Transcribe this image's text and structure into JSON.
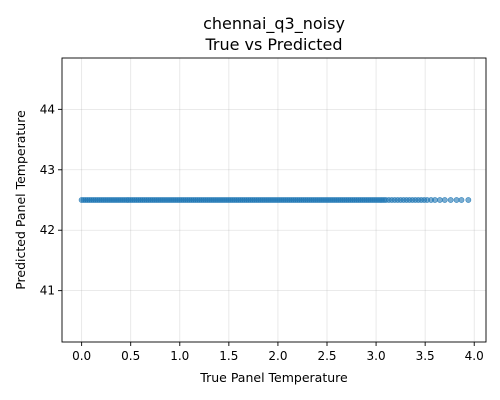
{
  "chart_data": {
    "type": "scatter",
    "title_line1": "chennai_q3_noisy",
    "title_line2": "True vs Predicted",
    "xlabel": "True Panel Temperature",
    "ylabel": "Predicted Panel Temperature",
    "xlim": [
      -0.2,
      4.12
    ],
    "ylim": [
      40.15,
      44.85
    ],
    "xticks": [
      0.0,
      0.5,
      1.0,
      1.5,
      2.0,
      2.5,
      3.0,
      3.5,
      4.0
    ],
    "xtick_labels": [
      "0.0",
      "0.5",
      "1.0",
      "1.5",
      "2.0",
      "2.5",
      "3.0",
      "3.5",
      "4.0"
    ],
    "yticks": [
      41,
      42,
      43,
      44
    ],
    "ytick_labels": [
      "41",
      "42",
      "43",
      "44"
    ],
    "grid": true,
    "point_color": "#1f77b4",
    "series": [
      {
        "predicted_value": 42.5,
        "x": [
          0.0,
          0.02,
          0.04,
          0.06,
          0.08,
          0.1,
          0.12,
          0.14,
          0.16,
          0.18,
          0.2,
          0.22,
          0.24,
          0.26,
          0.28,
          0.3,
          0.32,
          0.34,
          0.36,
          0.38,
          0.4,
          0.42,
          0.44,
          0.46,
          0.48,
          0.5,
          0.52,
          0.54,
          0.56,
          0.58,
          0.6,
          0.62,
          0.64,
          0.66,
          0.68,
          0.7,
          0.72,
          0.74,
          0.76,
          0.78,
          0.8,
          0.82,
          0.84,
          0.86,
          0.88,
          0.9,
          0.92,
          0.94,
          0.96,
          0.98,
          1.0,
          1.02,
          1.04,
          1.06,
          1.08,
          1.1,
          1.12,
          1.14,
          1.16,
          1.18,
          1.2,
          1.22,
          1.24,
          1.26,
          1.28,
          1.3,
          1.32,
          1.34,
          1.36,
          1.38,
          1.4,
          1.42,
          1.44,
          1.46,
          1.48,
          1.5,
          1.52,
          1.54,
          1.56,
          1.58,
          1.6,
          1.62,
          1.64,
          1.66,
          1.68,
          1.7,
          1.72,
          1.74,
          1.76,
          1.78,
          1.8,
          1.82,
          1.84,
          1.86,
          1.88,
          1.9,
          1.92,
          1.94,
          1.96,
          1.98,
          2.0,
          2.02,
          2.04,
          2.06,
          2.08,
          2.1,
          2.12,
          2.14,
          2.16,
          2.18,
          2.2,
          2.22,
          2.24,
          2.26,
          2.28,
          2.3,
          2.32,
          2.34,
          2.36,
          2.38,
          2.4,
          2.42,
          2.44,
          2.46,
          2.48,
          2.5,
          2.52,
          2.54,
          2.56,
          2.58,
          2.6,
          2.62,
          2.64,
          2.66,
          2.68,
          2.7,
          2.72,
          2.74,
          2.76,
          2.78,
          2.8,
          2.82,
          2.84,
          2.86,
          2.88,
          2.9,
          2.92,
          2.94,
          2.96,
          2.98,
          3.0,
          3.02,
          3.04,
          3.06,
          3.08,
          3.1,
          3.13,
          3.16,
          3.19,
          3.22,
          3.25,
          3.28,
          3.31,
          3.34,
          3.37,
          3.4,
          3.43,
          3.46,
          3.49,
          3.52,
          3.56,
          3.6,
          3.65,
          3.7,
          3.76,
          3.82,
          3.87,
          3.94
        ]
      }
    ]
  }
}
